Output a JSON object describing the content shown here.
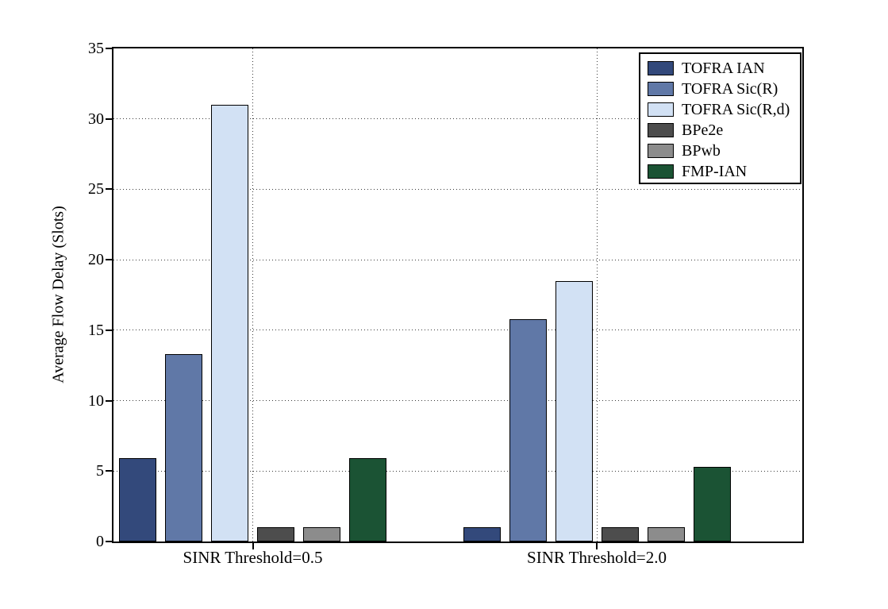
{
  "chart_data": {
    "type": "bar",
    "title": "",
    "xlabel": "",
    "ylabel": "Average Flow Delay (Slots)",
    "ylim": [
      0,
      35
    ],
    "yticks": [
      0,
      5,
      10,
      15,
      20,
      25,
      30,
      35
    ],
    "grid": {
      "horizontal": "dotted black lines at each y tick",
      "vertical": "dotted black line at each category center"
    },
    "categories": [
      "SINR Threshold=0.5",
      "SINR Threshold=2.0"
    ],
    "series": [
      {
        "name": "TOFRA IAN",
        "color": "#33497B",
        "values": [
          5.9,
          1.0
        ]
      },
      {
        "name": "TOFRA Sic(R)",
        "color": "#6078A7",
        "values": [
          13.3,
          15.8
        ]
      },
      {
        "name": "TOFRA Sic(R,d)",
        "color": "#D2E1F4",
        "values": [
          31.0,
          18.5
        ]
      },
      {
        "name": "BPe2e",
        "color": "#4D4D4D",
        "values": [
          1.0,
          1.0
        ]
      },
      {
        "name": "BPwb",
        "color": "#8C8C8C",
        "values": [
          1.0,
          1.0
        ]
      },
      {
        "name": "FMP-IAN",
        "color": "#1B5334",
        "values": [
          5.9,
          5.3
        ]
      }
    ],
    "bar_edge_color": "#000000",
    "axis_color": "#000000",
    "background_color": "#FFFFFF",
    "legend": {
      "position": "top-right-inside",
      "entries": [
        "TOFRA IAN",
        "TOFRA Sic(R)",
        "TOFRA Sic(R,d)",
        "BPe2e",
        "BPwb",
        "FMP-IAN"
      ]
    }
  }
}
